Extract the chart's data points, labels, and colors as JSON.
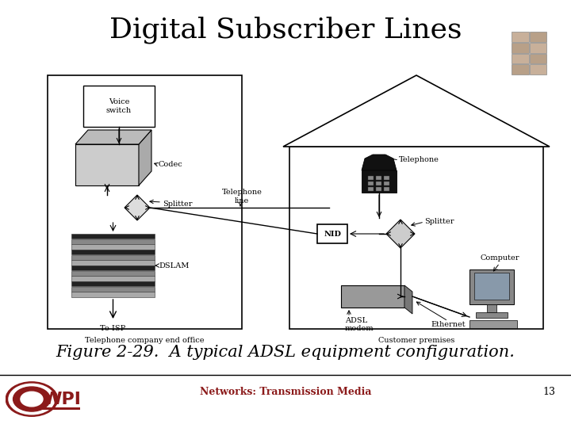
{
  "title": "Digital Subscriber Lines",
  "caption": "Figure 2-29.  A typical ADSL equipment configuration.",
  "footer_text": "Networks: Transmission Media",
  "footer_number": "13",
  "bg_color": "#ffffff",
  "title_fontsize": 26,
  "caption_fontsize": 15,
  "footer_fontsize": 9,
  "left_box_label": "Telephone company end office",
  "right_box_label": "Customer premises",
  "splitter_color": "#cccccc",
  "dslam_dark": "#444444",
  "dslam_light": "#bbbbbb"
}
